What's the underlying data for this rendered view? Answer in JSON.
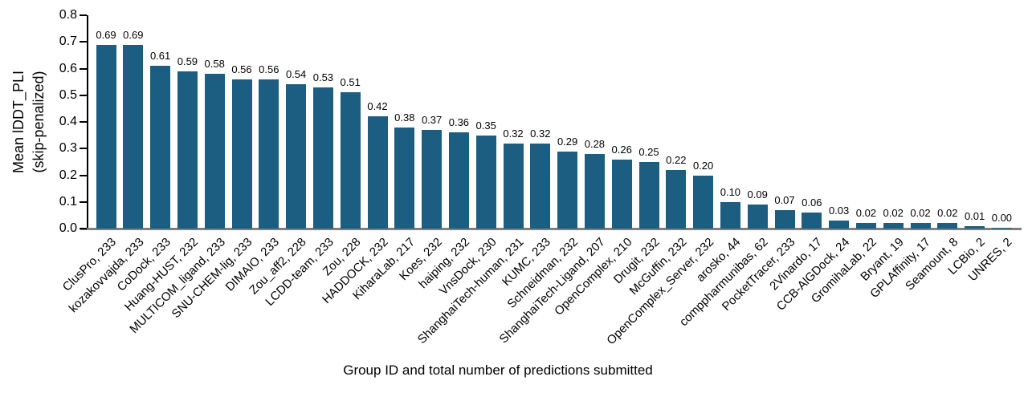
{
  "chart_data": {
    "type": "bar",
    "title": "",
    "xlabel": "Group ID and total number of predictions submitted",
    "ylabel_lines": {
      "line1": "Mean lDDT_PLI",
      "line2": "(skip-penalized)"
    },
    "categories": [
      "ClusPro, 233",
      "kozakovvajda, 233",
      "CoDock, 233",
      "Huang-HUST, 232",
      "MULTICOM_ligand, 233",
      "SNU-CHEM-lig, 233",
      "DIMAIO, 233",
      "Zou_aff2, 228",
      "LCDD-team, 233",
      "Zou, 228",
      "HADDOCK, 232",
      "KiharaLab, 217",
      "Koes, 232",
      "haiping, 232",
      "VnsDock, 230",
      "ShanghaiTech-human, 231",
      "KUMC, 233",
      "Schneidman, 232",
      "ShanghaiTech-Ligand, 207",
      "OpenComplex, 210",
      "Drugit, 232",
      "McGuffin, 232",
      "OpenComplex_Server, 232",
      "arosko, 44",
      "comppharmunibas, 62",
      "PocketTracer, 233",
      "2Vinardo, 17",
      "CCB-AlGDock, 24",
      "GromihaLab, 22",
      "Bryant, 19",
      "GPLAffinity, 17",
      "Seamount, 8",
      "LCBio, 2",
      "UNRES, 2"
    ],
    "values": [
      0.69,
      0.69,
      0.61,
      0.59,
      0.58,
      0.56,
      0.56,
      0.54,
      0.53,
      0.51,
      0.42,
      0.38,
      0.37,
      0.36,
      0.35,
      0.32,
      0.32,
      0.29,
      0.28,
      0.26,
      0.25,
      0.22,
      0.2,
      0.1,
      0.09,
      0.07,
      0.06,
      0.03,
      0.02,
      0.02,
      0.02,
      0.02,
      0.01,
      0.0
    ],
    "value_labels": [
      "0.69",
      "0.69",
      "0.61",
      "0.59",
      "0.58",
      "0.56",
      "0.56",
      "0.54",
      "0.53",
      "0.51",
      "0.42",
      "0.38",
      "0.37",
      "0.36",
      "0.35",
      "0.32",
      "0.32",
      "0.29",
      "0.28",
      "0.26",
      "0.25",
      "0.22",
      "0.20",
      "0.10",
      "0.09",
      "0.07",
      "0.06",
      "0.03",
      "0.02",
      "0.02",
      "0.02",
      "0.02",
      "0.01",
      "0.00"
    ],
    "ylim": [
      0.0,
      0.8
    ],
    "ytick_labels": [
      "0.0",
      "0.1",
      "0.2",
      "0.3",
      "0.4",
      "0.5",
      "0.6",
      "0.7",
      "0.8"
    ],
    "ytick_values": [
      0.0,
      0.1,
      0.2,
      0.3,
      0.4,
      0.5,
      0.6,
      0.7,
      0.8
    ],
    "grid": "off",
    "legend": "none",
    "bar_color": "#1b5e81",
    "axis_line_color": "#000000",
    "baseline_color": "#7f7f7f",
    "text_color": "#000000"
  }
}
